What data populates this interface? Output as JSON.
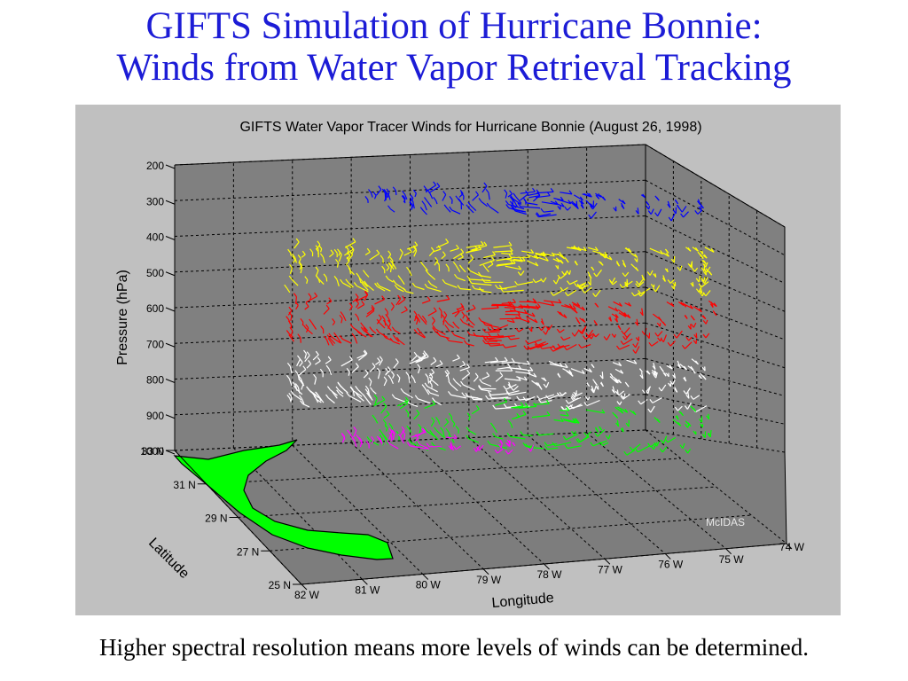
{
  "slide": {
    "title_line1": "GIFTS Simulation of Hurricane Bonnie:",
    "title_line2": "Winds from Water Vapor Retrieval Tracking",
    "caption": "Higher spectral resolution means more levels of winds can be determined."
  },
  "chart_data": {
    "type": "scatter",
    "subtype": "3d-wind-vector-field",
    "title": "GIFTS Water Vapor Tracer Winds for Hurricane Bonnie (August 26, 1998)",
    "xlabel": "Longitude",
    "ylabel": "Latitude",
    "zlabel": "Pressure (hPa)",
    "x_ticks": [
      "82 W",
      "81 W",
      "80 W",
      "79 W",
      "78 W",
      "77 W",
      "76 W",
      "75 W",
      "74 W"
    ],
    "y_ticks": [
      "25 N",
      "27 N",
      "29 N",
      "31 N",
      "33 N"
    ],
    "z_ticks": [
      "200",
      "300",
      "400",
      "500",
      "600",
      "700",
      "800",
      "900",
      "1000"
    ],
    "xlim": [
      -82,
      -74
    ],
    "ylim": [
      25,
      33
    ],
    "zlim": [
      1000,
      200
    ],
    "z_reversed": true,
    "grid": true,
    "watermark": "McIDAS",
    "colors": {
      "background": "#c0c0c0",
      "wall": "#808080",
      "land": "#00ff00",
      "grid": "#000000"
    },
    "layers": [
      {
        "color": "#0000ff",
        "pressure_range": [
          275,
          340
        ],
        "extent": "partial"
      },
      {
        "color": "#ffff00",
        "pressure_range": [
          430,
          560
        ],
        "extent": "full"
      },
      {
        "color": "#ff0000",
        "pressure_range": [
          580,
          710
        ],
        "extent": "full"
      },
      {
        "color": "#ffffff",
        "pressure_range": [
          740,
          880
        ],
        "extent": "full"
      },
      {
        "color": "#00ff00",
        "pressure_range": [
          870,
          1000
        ],
        "extent": "partial"
      },
      {
        "color": "#ff00ff",
        "pressure_range": [
          960,
          1000
        ],
        "extent": "sparse"
      }
    ]
  }
}
